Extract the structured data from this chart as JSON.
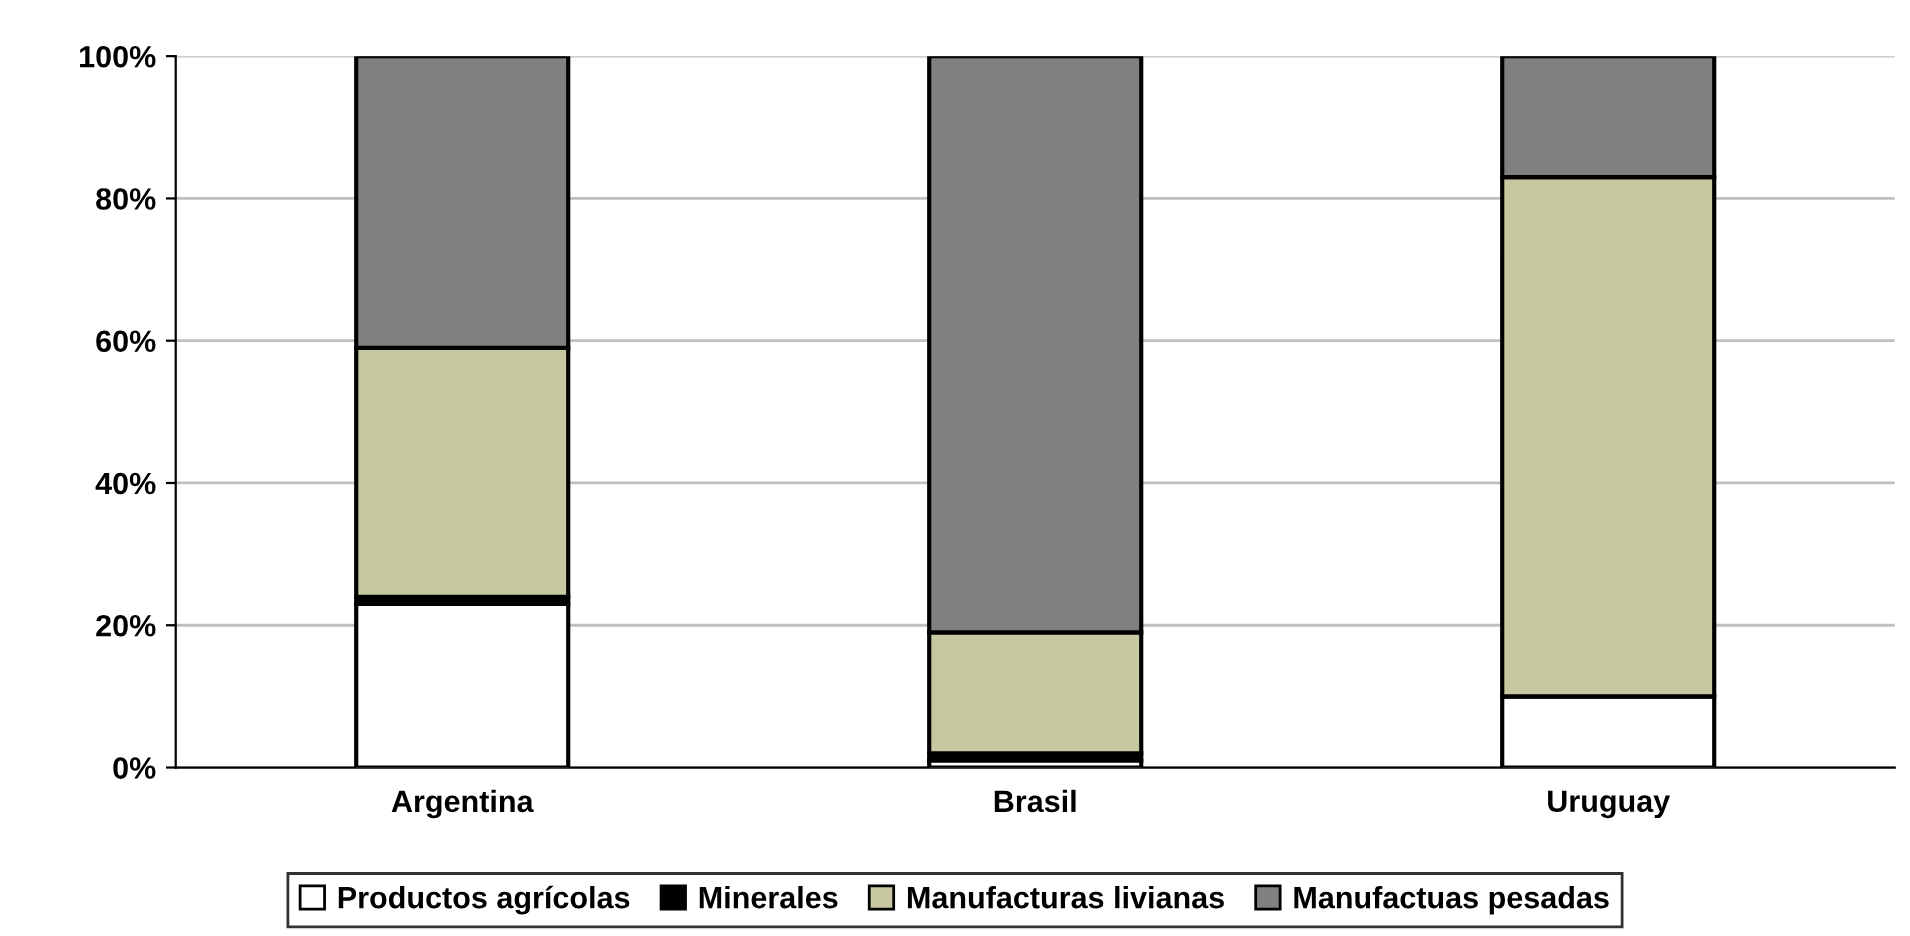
{
  "chart_data": {
    "type": "bar",
    "stacked": true,
    "categories": [
      "Argentina",
      "Brasil",
      "Uruguay"
    ],
    "series": [
      {
        "name": "Productos agrícolas",
        "color": "#ffffff",
        "values": [
          23,
          1,
          10
        ]
      },
      {
        "name": "Minerales",
        "color": "#000000",
        "values": [
          1,
          1,
          0
        ]
      },
      {
        "name": "Manufacturas livianas",
        "color": "#c8c8a0",
        "values": [
          35,
          17,
          73
        ]
      },
      {
        "name": "Manufactuas pesadas",
        "color": "#808080",
        "values": [
          41,
          81,
          17
        ]
      }
    ],
    "ylim": [
      0,
      100
    ],
    "yticks": [
      {
        "value": 0,
        "label": "0%"
      },
      {
        "value": 20,
        "label": "20%"
      },
      {
        "value": 40,
        "label": "40%"
      },
      {
        "value": 60,
        "label": "60%"
      },
      {
        "value": 80,
        "label": "80%"
      },
      {
        "value": 100,
        "label": "100%"
      }
    ],
    "grid": "y",
    "legend": "bottom"
  }
}
